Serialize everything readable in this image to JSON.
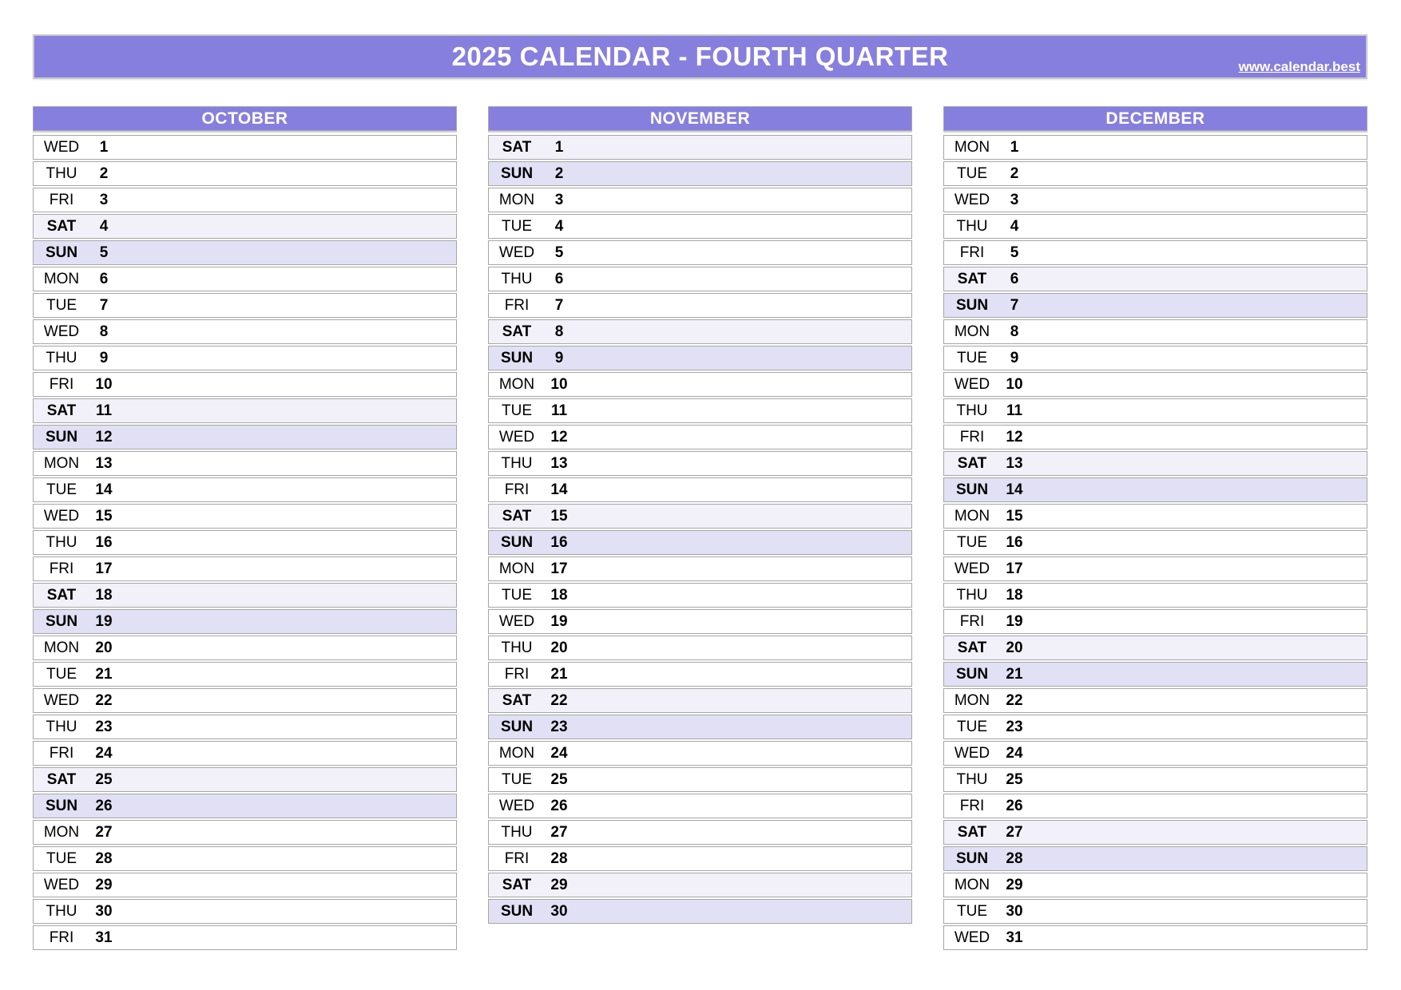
{
  "header": {
    "title": "2025 CALENDAR - FOURTH QUARTER",
    "link": "www.calendar.best"
  },
  "colors": {
    "header_bg": "#877FDE",
    "month_header_bg": "#877FDE",
    "header_text": "#FFFFFF",
    "saturday_row_bg": "#F2F1FA",
    "sunday_row_bg": "#E2E0F4",
    "row_border": "#A6A6A6",
    "day_text": "#000000"
  },
  "months": [
    {
      "name": "OCTOBER",
      "days": [
        {
          "w": "WED",
          "d": 1
        },
        {
          "w": "THU",
          "d": 2
        },
        {
          "w": "FRI",
          "d": 3
        },
        {
          "w": "SAT",
          "d": 4
        },
        {
          "w": "SUN",
          "d": 5
        },
        {
          "w": "MON",
          "d": 6
        },
        {
          "w": "TUE",
          "d": 7
        },
        {
          "w": "WED",
          "d": 8
        },
        {
          "w": "THU",
          "d": 9
        },
        {
          "w": "FRI",
          "d": 10
        },
        {
          "w": "SAT",
          "d": 11
        },
        {
          "w": "SUN",
          "d": 12
        },
        {
          "w": "MON",
          "d": 13
        },
        {
          "w": "TUE",
          "d": 14
        },
        {
          "w": "WED",
          "d": 15
        },
        {
          "w": "THU",
          "d": 16
        },
        {
          "w": "FRI",
          "d": 17
        },
        {
          "w": "SAT",
          "d": 18
        },
        {
          "w": "SUN",
          "d": 19
        },
        {
          "w": "MON",
          "d": 20
        },
        {
          "w": "TUE",
          "d": 21
        },
        {
          "w": "WED",
          "d": 22
        },
        {
          "w": "THU",
          "d": 23
        },
        {
          "w": "FRI",
          "d": 24
        },
        {
          "w": "SAT",
          "d": 25
        },
        {
          "w": "SUN",
          "d": 26
        },
        {
          "w": "MON",
          "d": 27
        },
        {
          "w": "TUE",
          "d": 28
        },
        {
          "w": "WED",
          "d": 29
        },
        {
          "w": "THU",
          "d": 30
        },
        {
          "w": "FRI",
          "d": 31
        }
      ]
    },
    {
      "name": "NOVEMBER",
      "days": [
        {
          "w": "SAT",
          "d": 1
        },
        {
          "w": "SUN",
          "d": 2
        },
        {
          "w": "MON",
          "d": 3
        },
        {
          "w": "TUE",
          "d": 4
        },
        {
          "w": "WED",
          "d": 5
        },
        {
          "w": "THU",
          "d": 6
        },
        {
          "w": "FRI",
          "d": 7
        },
        {
          "w": "SAT",
          "d": 8
        },
        {
          "w": "SUN",
          "d": 9
        },
        {
          "w": "MON",
          "d": 10
        },
        {
          "w": "TUE",
          "d": 11
        },
        {
          "w": "WED",
          "d": 12
        },
        {
          "w": "THU",
          "d": 13
        },
        {
          "w": "FRI",
          "d": 14
        },
        {
          "w": "SAT",
          "d": 15
        },
        {
          "w": "SUN",
          "d": 16
        },
        {
          "w": "MON",
          "d": 17
        },
        {
          "w": "TUE",
          "d": 18
        },
        {
          "w": "WED",
          "d": 19
        },
        {
          "w": "THU",
          "d": 20
        },
        {
          "w": "FRI",
          "d": 21
        },
        {
          "w": "SAT",
          "d": 22
        },
        {
          "w": "SUN",
          "d": 23
        },
        {
          "w": "MON",
          "d": 24
        },
        {
          "w": "TUE",
          "d": 25
        },
        {
          "w": "WED",
          "d": 26
        },
        {
          "w": "THU",
          "d": 27
        },
        {
          "w": "FRI",
          "d": 28
        },
        {
          "w": "SAT",
          "d": 29
        },
        {
          "w": "SUN",
          "d": 30
        }
      ]
    },
    {
      "name": "DECEMBER",
      "days": [
        {
          "w": "MON",
          "d": 1
        },
        {
          "w": "TUE",
          "d": 2
        },
        {
          "w": "WED",
          "d": 3
        },
        {
          "w": "THU",
          "d": 4
        },
        {
          "w": "FRI",
          "d": 5
        },
        {
          "w": "SAT",
          "d": 6
        },
        {
          "w": "SUN",
          "d": 7
        },
        {
          "w": "MON",
          "d": 8
        },
        {
          "w": "TUE",
          "d": 9
        },
        {
          "w": "WED",
          "d": 10
        },
        {
          "w": "THU",
          "d": 11
        },
        {
          "w": "FRI",
          "d": 12
        },
        {
          "w": "SAT",
          "d": 13
        },
        {
          "w": "SUN",
          "d": 14
        },
        {
          "w": "MON",
          "d": 15
        },
        {
          "w": "TUE",
          "d": 16
        },
        {
          "w": "WED",
          "d": 17
        },
        {
          "w": "THU",
          "d": 18
        },
        {
          "w": "FRI",
          "d": 19
        },
        {
          "w": "SAT",
          "d": 20
        },
        {
          "w": "SUN",
          "d": 21
        },
        {
          "w": "MON",
          "d": 22
        },
        {
          "w": "TUE",
          "d": 23
        },
        {
          "w": "WED",
          "d": 24
        },
        {
          "w": "THU",
          "d": 25
        },
        {
          "w": "FRI",
          "d": 26
        },
        {
          "w": "SAT",
          "d": 27
        },
        {
          "w": "SUN",
          "d": 28
        },
        {
          "w": "MON",
          "d": 29
        },
        {
          "w": "TUE",
          "d": 30
        },
        {
          "w": "WED",
          "d": 31
        }
      ]
    }
  ]
}
